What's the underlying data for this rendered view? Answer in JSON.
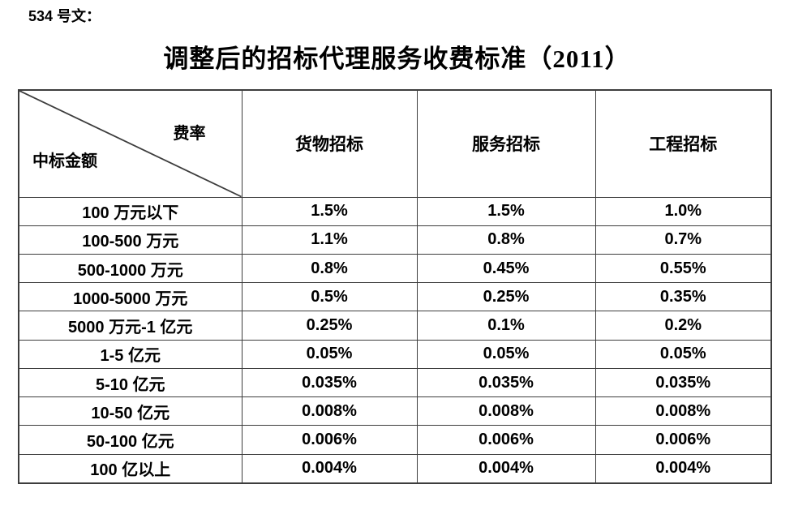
{
  "page": {
    "doc_number": "534 号文：",
    "title": "调整后的招标代理服务收费标准（2011）"
  },
  "table": {
    "corner": {
      "top_right": "费率",
      "bottom_left": "中标金额"
    },
    "columns": [
      "货物招标",
      "服务招标",
      "工程招标"
    ],
    "rows": [
      {
        "label": "100 万元以下",
        "values": [
          "1.5%",
          "1.5%",
          "1.0%"
        ]
      },
      {
        "label": "100-500 万元",
        "values": [
          "1.1%",
          "0.8%",
          "0.7%"
        ]
      },
      {
        "label": "500-1000 万元",
        "values": [
          "0.8%",
          "0.45%",
          "0.55%"
        ]
      },
      {
        "label": "1000-5000 万元",
        "values": [
          "0.5%",
          "0.25%",
          "0.35%"
        ]
      },
      {
        "label": "5000 万元-1 亿元",
        "values": [
          "0.25%",
          "0.1%",
          "0.2%"
        ]
      },
      {
        "label": "1-5 亿元",
        "values": [
          "0.05%",
          "0.05%",
          "0.05%"
        ]
      },
      {
        "label": "5-10 亿元",
        "values": [
          "0.035%",
          "0.035%",
          "0.035%"
        ]
      },
      {
        "label": "10-50 亿元",
        "values": [
          "0.008%",
          "0.008%",
          "0.008%"
        ]
      },
      {
        "label": "50-100 亿元",
        "values": [
          "0.006%",
          "0.006%",
          "0.006%"
        ]
      },
      {
        "label": "100 亿以上",
        "values": [
          "0.004%",
          "0.004%",
          "0.004%"
        ]
      }
    ]
  },
  "colors": {
    "text": "#000000",
    "border": "#3d3d3d",
    "background": "#ffffff"
  }
}
